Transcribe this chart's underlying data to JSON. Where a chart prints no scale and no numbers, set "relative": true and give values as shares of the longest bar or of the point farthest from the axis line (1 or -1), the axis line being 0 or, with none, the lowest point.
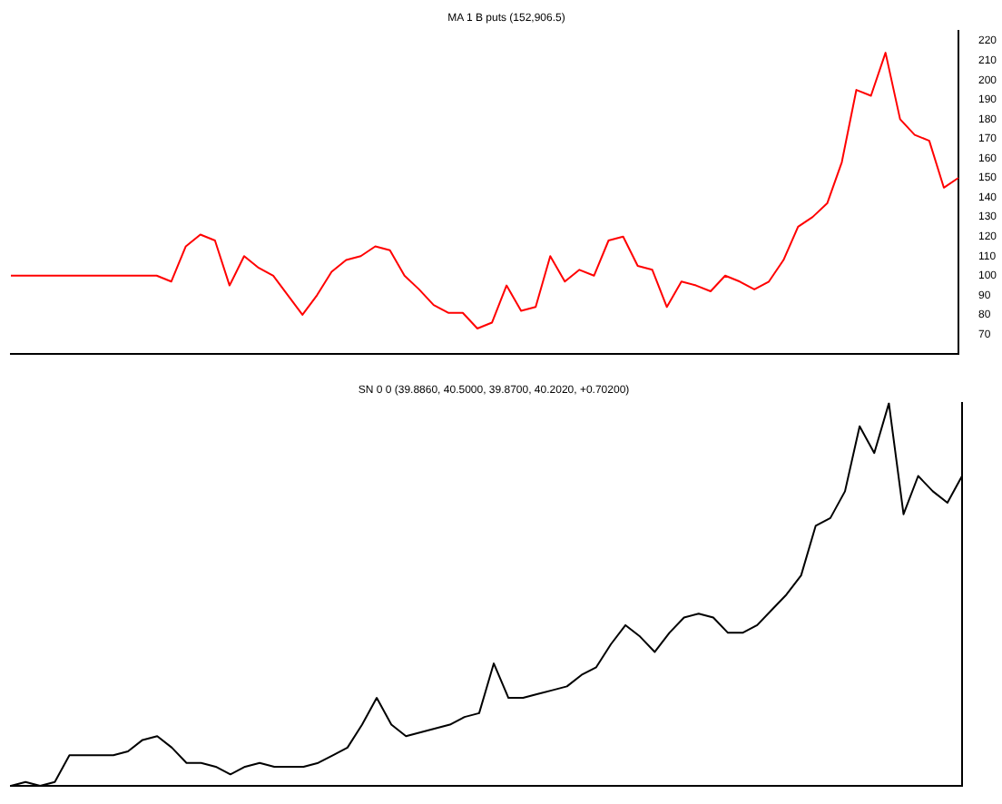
{
  "chart_data": [
    {
      "type": "line",
      "title": "MA 1 B puts (152,906.5)",
      "categories": [
        null,
        null,
        null,
        null,
        null,
        null,
        null,
        null,
        null,
        null,
        null,
        null,
        null,
        null,
        null,
        null,
        null,
        null,
        null,
        null,
        null,
        null,
        null,
        null,
        null,
        null,
        null,
        null,
        null,
        null,
        null,
        null,
        null,
        null,
        null,
        null,
        null,
        null,
        null,
        null,
        null,
        null,
        null,
        null,
        null,
        null,
        null,
        null,
        null,
        null,
        null,
        null,
        null,
        null,
        null,
        null,
        null,
        null,
        null,
        null,
        null,
        null,
        null,
        null,
        null,
        null
      ],
      "series": [
        {
          "color": "#ff0000",
          "values": [
            100,
            100,
            100,
            100,
            100,
            100,
            100,
            100,
            100,
            100,
            100,
            97,
            115,
            121,
            118,
            95,
            110,
            104,
            100,
            90,
            80,
            90,
            102,
            108,
            110,
            115,
            113,
            100,
            93,
            85,
            81,
            81,
            73,
            76,
            95,
            82,
            84,
            110,
            97,
            103,
            100,
            118,
            120,
            105,
            103,
            84,
            97,
            95,
            92,
            100,
            97,
            93,
            97,
            108,
            125,
            130,
            137,
            158,
            195,
            192,
            214,
            180,
            172,
            169,
            145,
            150
          ]
        }
      ],
      "ylim": [
        60,
        225
      ],
      "yticks": [
        70,
        80,
        90,
        100,
        110,
        120,
        130,
        140,
        150,
        160,
        170,
        180,
        190,
        200,
        210,
        220
      ],
      "tick_labels": "y",
      "legend": false,
      "marker": "none",
      "line_style": "solid"
    },
    {
      "type": "line",
      "title": "SN 0 0 (39.8860, 40.5000, 39.8700, 40.2020, +0.70200)",
      "relative": true,
      "categories": [
        null,
        null,
        null,
        null,
        null,
        null,
        null,
        null,
        null,
        null,
        null,
        null,
        null,
        null,
        null,
        null,
        null,
        null,
        null,
        null,
        null,
        null,
        null,
        null,
        null,
        null,
        null,
        null,
        null,
        null,
        null,
        null,
        null,
        null,
        null,
        null,
        null,
        null,
        null,
        null,
        null,
        null,
        null,
        null,
        null,
        null,
        null,
        null,
        null,
        null,
        null,
        null,
        null,
        null,
        null,
        null,
        null,
        null,
        null,
        null,
        null,
        null,
        null,
        null,
        null,
        null
      ],
      "series": [
        {
          "color": "#000000",
          "values": [
            0,
            0.01,
            0,
            0.01,
            0.08,
            0.08,
            0.08,
            0.08,
            0.09,
            0.12,
            0.13,
            0.1,
            0.06,
            0.06,
            0.05,
            0.03,
            0.05,
            0.06,
            0.05,
            0.05,
            0.05,
            0.06,
            0.08,
            0.1,
            0.16,
            0.23,
            0.16,
            0.13,
            0.14,
            0.15,
            0.16,
            0.18,
            0.19,
            0.32,
            0.23,
            0.23,
            0.24,
            0.25,
            0.26,
            0.29,
            0.31,
            0.37,
            0.42,
            0.39,
            0.35,
            0.4,
            0.44,
            0.45,
            0.44,
            0.4,
            0.4,
            0.42,
            0.46,
            0.5,
            0.55,
            0.68,
            0.7,
            0.77,
            0.94,
            0.87,
            1,
            0.71,
            0.81,
            0.77,
            0.74,
            0.81
          ]
        }
      ],
      "tick_labels": false,
      "legend": false,
      "marker": "none",
      "line_style": "solid"
    }
  ]
}
